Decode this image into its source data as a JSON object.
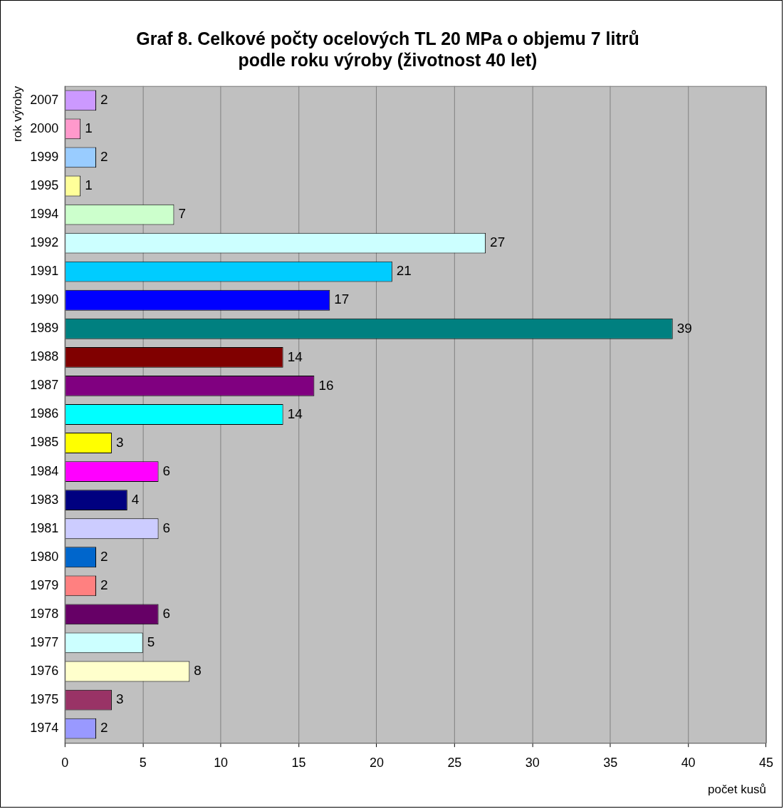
{
  "chart_data": {
    "type": "bar",
    "orientation": "horizontal",
    "title": "Graf 8. Celkové počty ocelových TL 20 MPa o objemu 7 litrů\npodle roku výroby (životnost 40 let)",
    "xlabel": "počet kusů",
    "ylabel": "rok výroby",
    "categories": [
      "2007",
      "2000",
      "1999",
      "1995",
      "1994",
      "1992",
      "1991",
      "1990",
      "1989",
      "1988",
      "1987",
      "1986",
      "1985",
      "1984",
      "1983",
      "1981",
      "1980",
      "1979",
      "1978",
      "1977",
      "1976",
      "1975",
      "1974"
    ],
    "values": [
      2,
      1,
      2,
      1,
      7,
      27,
      21,
      17,
      39,
      14,
      16,
      14,
      3,
      6,
      4,
      6,
      2,
      2,
      6,
      5,
      8,
      3,
      2
    ],
    "colors": [
      "#cc99ff",
      "#ff99cc",
      "#99ccff",
      "#ffff99",
      "#ccffcc",
      "#ccffff",
      "#00ccff",
      "#0000ff",
      "#008080",
      "#800000",
      "#800080",
      "#00ffff",
      "#ffff00",
      "#ff00ff",
      "#000080",
      "#ccccff",
      "#0066cc",
      "#ff8080",
      "#660066",
      "#ccffff",
      "#ffffcc",
      "#993366",
      "#9999ff"
    ],
    "xlim": [
      0,
      45
    ],
    "xticks": [
      0,
      5,
      10,
      15,
      20,
      25,
      30,
      35,
      40,
      45
    ],
    "grid": "x",
    "legend": false,
    "data_labels": true
  }
}
